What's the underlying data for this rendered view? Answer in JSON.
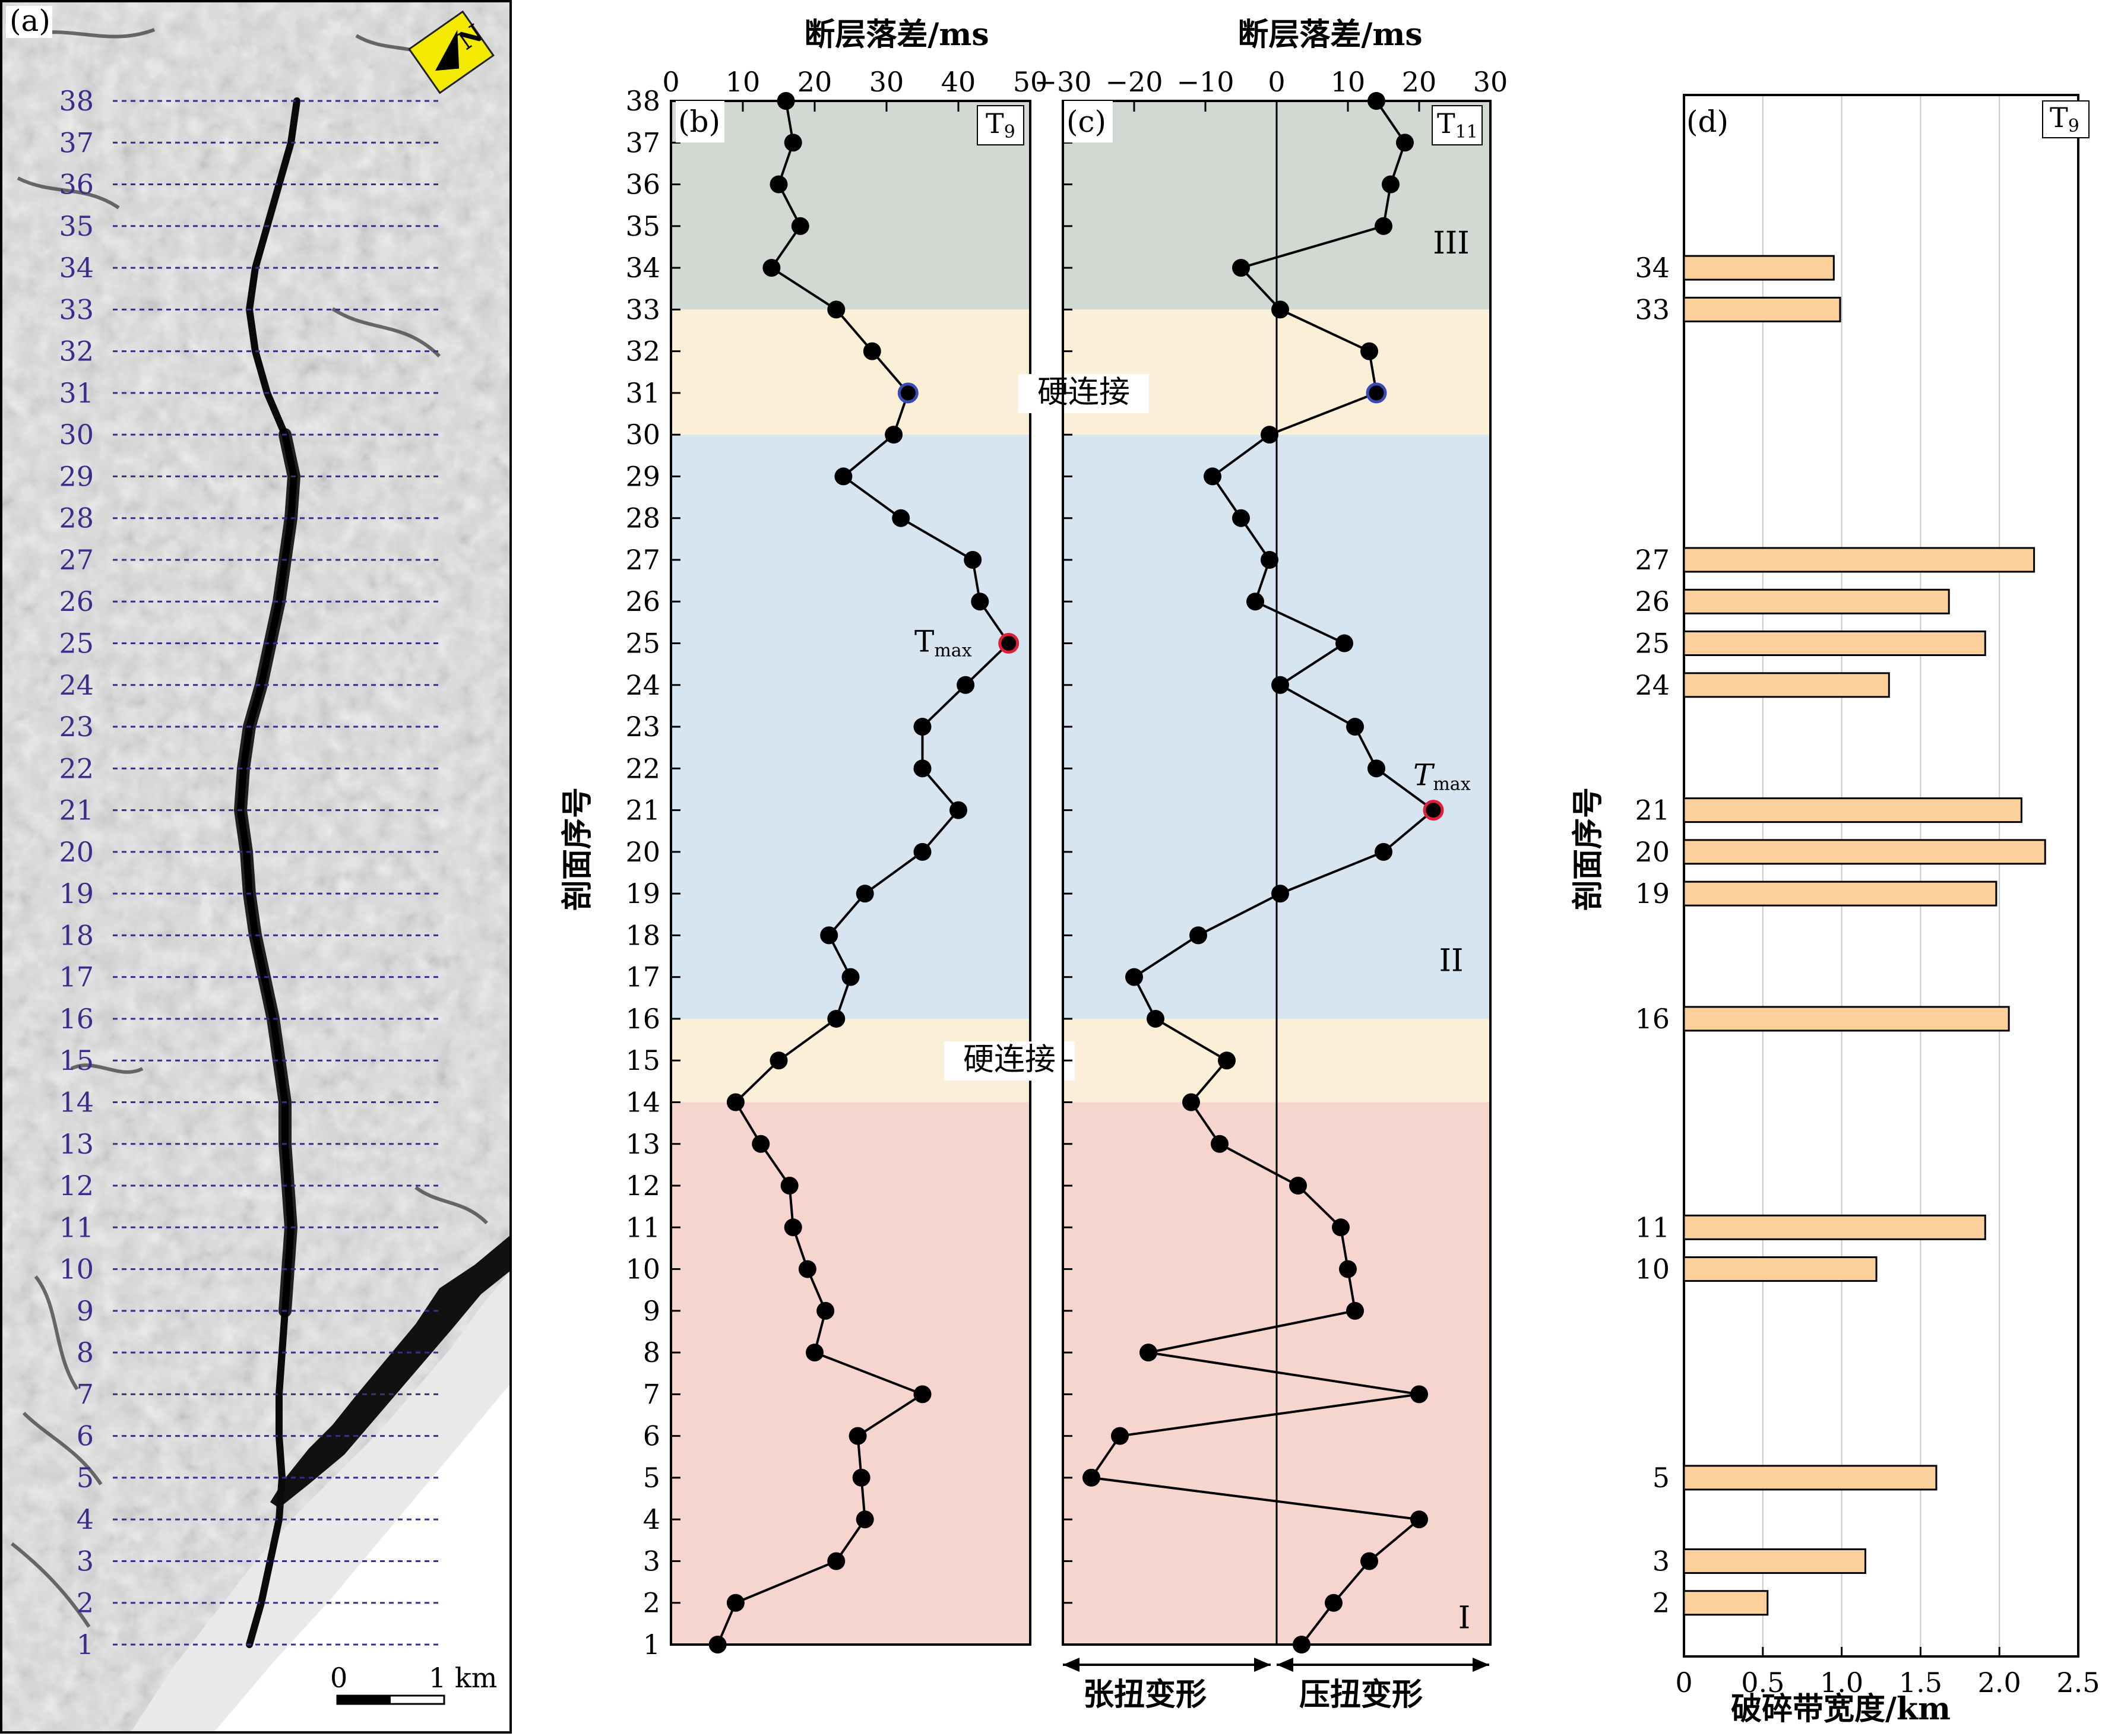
{
  "panel_a": {
    "tag": "(a)",
    "north_label": "N",
    "scale_labels": [
      "0",
      "1 km"
    ],
    "section_labels": [
      "1",
      "2",
      "3",
      "4",
      "5",
      "6",
      "7",
      "8",
      "9",
      "10",
      "11",
      "12",
      "13",
      "14",
      "15",
      "16",
      "17",
      "18",
      "19",
      "20",
      "21",
      "22",
      "23",
      "24",
      "25",
      "26",
      "27",
      "28",
      "29",
      "30",
      "31",
      "32",
      "33",
      "34",
      "35",
      "36",
      "37",
      "38"
    ]
  },
  "shared": {
    "ylabel": "剖面序号",
    "ylim": [
      1,
      38
    ],
    "zones": [
      {
        "from": 1,
        "to": 14,
        "color": "#f5d5cd",
        "roman": "I"
      },
      {
        "from": 14,
        "to": 16,
        "color": "#fcefd8",
        "label": "硬连接"
      },
      {
        "from": 16,
        "to": 30,
        "color": "#d6e5ef",
        "roman": "II"
      },
      {
        "from": 30,
        "to": 33,
        "color": "#fcefd8",
        "label": "硬连接"
      },
      {
        "from": 33,
        "to": 38,
        "color": "#d2d9d2",
        "roman": "III"
      }
    ]
  },
  "chart_data": [
    {
      "type": "line",
      "panel": "(b)",
      "tag": "T9",
      "title": "断层落差/ms",
      "xlim": [
        0,
        50
      ],
      "xticks": [
        "0",
        "10",
        "20",
        "30",
        "40",
        "50"
      ],
      "yticks": [
        "1",
        "2",
        "3",
        "4",
        "5",
        "6",
        "7",
        "8",
        "9",
        "10",
        "11",
        "12",
        "13",
        "14",
        "15",
        "16",
        "17",
        "18",
        "19",
        "20",
        "21",
        "22",
        "23",
        "24",
        "25",
        "26",
        "27",
        "28",
        "29",
        "30",
        "31",
        "32",
        "33",
        "34",
        "35",
        "36",
        "37",
        "38"
      ],
      "y": [
        1,
        2,
        3,
        4,
        5,
        6,
        7,
        8,
        9,
        10,
        11,
        12,
        13,
        14,
        15,
        16,
        17,
        18,
        19,
        20,
        21,
        22,
        23,
        24,
        25,
        26,
        27,
        28,
        29,
        30,
        31,
        32,
        33,
        34,
        35,
        36,
        37,
        38
      ],
      "x": [
        6.5,
        9,
        23,
        27,
        26.5,
        26,
        35,
        20,
        21.5,
        19,
        17,
        16.5,
        12.5,
        9,
        15,
        23,
        25,
        22,
        27,
        35,
        40,
        35,
        35,
        41,
        47,
        43,
        42,
        32,
        24,
        31,
        33,
        28,
        23,
        14,
        18,
        15,
        17,
        16
      ],
      "tmax_label": "Tmax",
      "tmax_index": 25,
      "highlight_index": 31
    },
    {
      "type": "line",
      "panel": "(c)",
      "tag": "T11",
      "title": "断层落差/ms",
      "xlim": [
        -30,
        30
      ],
      "xticks": [
        "−30",
        "−20",
        "−10",
        "0",
        "10",
        "20",
        "30"
      ],
      "y": [
        1,
        2,
        3,
        4,
        5,
        6,
        7,
        8,
        9,
        10,
        11,
        12,
        13,
        14,
        15,
        16,
        17,
        18,
        19,
        20,
        21,
        22,
        23,
        24,
        25,
        26,
        27,
        28,
        29,
        30,
        31,
        32,
        33,
        34,
        35,
        36,
        37,
        38
      ],
      "x": [
        3.5,
        8,
        13,
        20,
        -26,
        -22,
        20,
        -18,
        11,
        10,
        9,
        3,
        -8,
        -12,
        -7,
        -17,
        -20,
        -11,
        0.5,
        15,
        22,
        14,
        11,
        0.5,
        9.5,
        -3,
        -1,
        -5,
        -9,
        -1,
        14,
        13,
        0.5,
        -5,
        15,
        16,
        18,
        14
      ],
      "tmax_label": "Tmax",
      "tmax_index": 21,
      "highlight_index": 31,
      "bottom_labels": [
        "张扭变形",
        "压扭变形"
      ]
    },
    {
      "type": "bar",
      "orientation": "horizontal",
      "panel": "(d)",
      "tag": "T9",
      "xlabel": "破碎带宽度/km",
      "ylabel": "剖面序号",
      "xlim": [
        0,
        2.5
      ],
      "xticks": [
        "0",
        "0.5",
        "1.0",
        "1.5",
        "2.0",
        "2.5"
      ],
      "bar_color": "#fbd09a",
      "categories": [
        "2",
        "3",
        "5",
        "10",
        "11",
        "16",
        "19",
        "20",
        "21",
        "24",
        "25",
        "26",
        "27",
        "33",
        "34"
      ],
      "values": [
        0.53,
        1.15,
        1.6,
        1.22,
        1.91,
        2.06,
        1.98,
        2.29,
        2.14,
        1.3,
        1.91,
        1.68,
        2.22,
        0.99,
        0.95
      ]
    }
  ]
}
